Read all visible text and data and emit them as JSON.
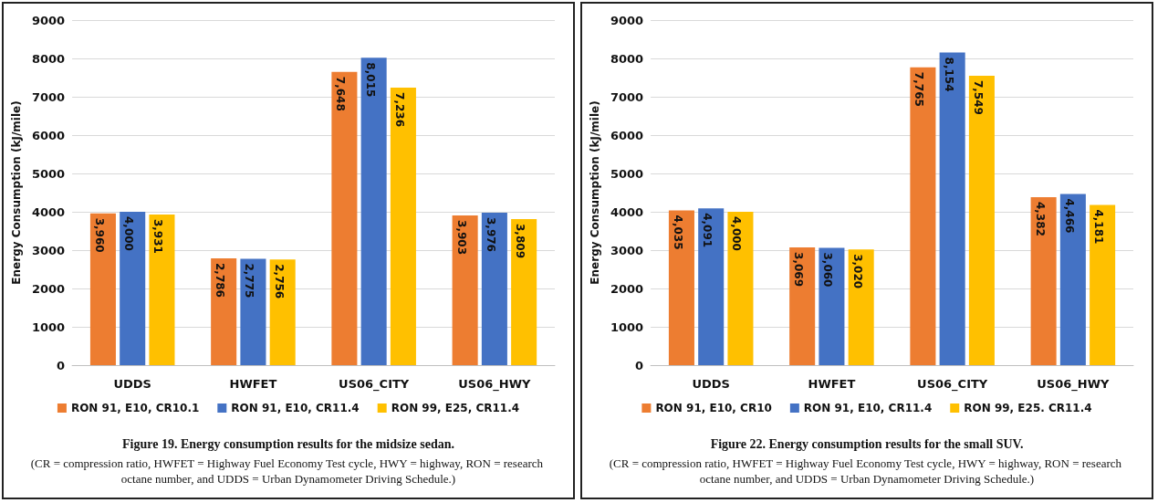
{
  "chart_data": [
    {
      "type": "bar",
      "title": "Figure 19. Energy consumption results for the midsize sedan.",
      "annotations": [
        "(CR = compression ratio, HWFET = Highway Fuel Economy Test cycle, HWY = highway, RON = research octane number, and UDDS = Urban Dynamometer Driving Schedule.)"
      ],
      "ylabel": "Energy Consumption (kJ/mile)",
      "categories": [
        "UDDS",
        "HWFET",
        "US06_CITY",
        "US06_HWY"
      ],
      "series": [
        {
          "name": "RON 91, E10, CR10.1",
          "color": "#ed7d31",
          "values": [
            3960,
            2786,
            7648,
            3903
          ],
          "value_labels": [
            "3,960",
            "2,786",
            "7,648",
            "3,903"
          ]
        },
        {
          "name": "RON 91, E10, CR11.4",
          "color": "#4472c4",
          "values": [
            4000,
            2775,
            8015,
            3976
          ],
          "value_labels": [
            "4,000",
            "2,775",
            "8,015",
            "3,976"
          ]
        },
        {
          "name": "RON 99, E25, CR11.4",
          "color": "#ffc000",
          "values": [
            3931,
            2756,
            7236,
            3809
          ],
          "value_labels": [
            "3,931",
            "2,756",
            "7,236",
            "3,809"
          ]
        }
      ],
      "ylim": [
        0,
        9000
      ],
      "yticks": [
        0,
        1000,
        2000,
        3000,
        4000,
        5000,
        6000,
        7000,
        8000,
        9000
      ],
      "grid": "y",
      "legend": "bottom"
    },
    {
      "type": "bar",
      "title": "Figure 22. Energy consumption results for the small SUV.",
      "annotations": [
        "(CR = compression ratio, HWFET = Highway Fuel Economy Test cycle, HWY = highway, RON = research octane number, and UDDS = Urban Dynamometer Driving Schedule.)"
      ],
      "ylabel": "Energy Consumption (kJ/mile)",
      "categories": [
        "UDDS",
        "HWFET",
        "US06_CITY",
        "US06_HWY"
      ],
      "series": [
        {
          "name": "RON 91, E10, CR10",
          "color": "#ed7d31",
          "values": [
            4035,
            3069,
            7765,
            4382
          ],
          "value_labels": [
            "4,035",
            "3,069",
            "7,765",
            "4,382"
          ]
        },
        {
          "name": "RON 91, E10, CR11.4",
          "color": "#4472c4",
          "values": [
            4091,
            3060,
            8154,
            4466
          ],
          "value_labels": [
            "4,091",
            "3,060",
            "8,154",
            "4,466"
          ]
        },
        {
          "name": "RON 99, E25. CR11.4",
          "color": "#ffc000",
          "values": [
            4000,
            3020,
            7549,
            4181
          ],
          "value_labels": [
            "4,000",
            "3,020",
            "7,549",
            "4,181"
          ]
        }
      ],
      "ylim": [
        0,
        9000
      ],
      "yticks": [
        0,
        1000,
        2000,
        3000,
        4000,
        5000,
        6000,
        7000,
        8000,
        9000
      ],
      "grid": "y",
      "legend": "bottom"
    }
  ]
}
